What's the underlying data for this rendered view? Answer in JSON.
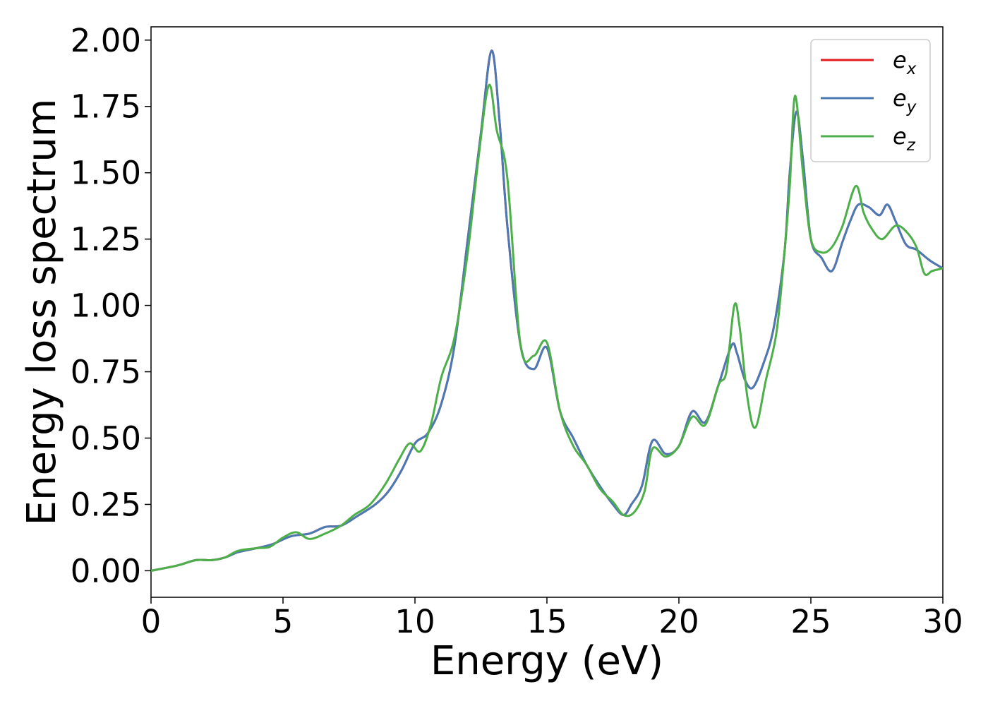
{
  "chart_data": {
    "type": "line",
    "xlabel": "Energy (eV)",
    "ylabel": "Energy loss spectrum",
    "xlim": [
      0,
      30
    ],
    "ylim": [
      -0.1,
      2.05
    ],
    "x_ticks": [
      0,
      5,
      10,
      15,
      20,
      25,
      30
    ],
    "x_tick_labels": [
      "0",
      "5",
      "10",
      "15",
      "20",
      "25",
      "30"
    ],
    "y_ticks": [
      0,
      0.25,
      0.5,
      0.75,
      1.0,
      1.25,
      1.5,
      1.75,
      2.0
    ],
    "y_tick_labels": [
      "0.00",
      "0.25",
      "0.50",
      "0.75",
      "1.00",
      "1.25",
      "1.50",
      "1.75",
      "2.00"
    ],
    "grid": false,
    "legend_position": "top-right",
    "series": [
      {
        "name": "e_x",
        "legend_base": "e",
        "legend_sub": "x",
        "color": "#e41a1c",
        "x": [
          0,
          1,
          1.7,
          2.3,
          2.8,
          3.3,
          4,
          4.6,
          5.3,
          6,
          6.6,
          7.2,
          7.8,
          8.5,
          9,
          9.5,
          10,
          10.5,
          11,
          11.5,
          12,
          12.5,
          12.9,
          13.2,
          13.5,
          14,
          14.5,
          15,
          15.5,
          16,
          16.5,
          17,
          17.5,
          17.9,
          18.2,
          18.6,
          19,
          19.5,
          20,
          20.5,
          21,
          21.5,
          22,
          22.2,
          22.5,
          22.8,
          23.2,
          23.6,
          24,
          24.2,
          24.45,
          24.7,
          25,
          25.4,
          25.8,
          26.2,
          26.5,
          26.8,
          27.2,
          27.6,
          27.9,
          28.2,
          28.6,
          29,
          29.5,
          30
        ],
        "y": [
          0,
          0.02,
          0.04,
          0.04,
          0.05,
          0.07,
          0.085,
          0.1,
          0.13,
          0.14,
          0.165,
          0.17,
          0.205,
          0.25,
          0.3,
          0.38,
          0.48,
          0.52,
          0.63,
          0.85,
          1.25,
          1.65,
          1.96,
          1.7,
          1.3,
          0.85,
          0.76,
          0.84,
          0.6,
          0.5,
          0.4,
          0.32,
          0.25,
          0.21,
          0.25,
          0.32,
          0.49,
          0.44,
          0.47,
          0.6,
          0.56,
          0.7,
          0.85,
          0.82,
          0.72,
          0.69,
          0.78,
          0.92,
          1.2,
          1.5,
          1.73,
          1.55,
          1.25,
          1.18,
          1.13,
          1.24,
          1.32,
          1.38,
          1.37,
          1.34,
          1.38,
          1.32,
          1.23,
          1.21,
          1.17,
          1.14
        ]
      },
      {
        "name": "e_y",
        "legend_base": "e",
        "legend_sub": "y",
        "color": "#4a7ab5",
        "x": [
          0,
          1,
          1.7,
          2.3,
          2.8,
          3.3,
          4,
          4.6,
          5.3,
          6,
          6.6,
          7.2,
          7.8,
          8.5,
          9,
          9.5,
          10,
          10.5,
          11,
          11.5,
          12,
          12.5,
          12.9,
          13.2,
          13.5,
          14,
          14.5,
          15,
          15.5,
          16,
          16.5,
          17,
          17.5,
          17.9,
          18.2,
          18.6,
          19,
          19.5,
          20,
          20.5,
          21,
          21.5,
          22,
          22.2,
          22.5,
          22.8,
          23.2,
          23.6,
          24,
          24.2,
          24.45,
          24.7,
          25,
          25.4,
          25.8,
          26.2,
          26.5,
          26.8,
          27.2,
          27.6,
          27.9,
          28.2,
          28.6,
          29,
          29.5,
          30
        ],
        "y": [
          0,
          0.02,
          0.04,
          0.04,
          0.05,
          0.07,
          0.085,
          0.1,
          0.13,
          0.14,
          0.165,
          0.17,
          0.205,
          0.25,
          0.3,
          0.38,
          0.48,
          0.52,
          0.63,
          0.85,
          1.25,
          1.65,
          1.96,
          1.7,
          1.3,
          0.85,
          0.76,
          0.84,
          0.6,
          0.5,
          0.4,
          0.32,
          0.25,
          0.21,
          0.25,
          0.32,
          0.49,
          0.44,
          0.47,
          0.6,
          0.56,
          0.7,
          0.85,
          0.82,
          0.72,
          0.69,
          0.78,
          0.92,
          1.2,
          1.5,
          1.73,
          1.55,
          1.25,
          1.18,
          1.13,
          1.24,
          1.32,
          1.38,
          1.37,
          1.34,
          1.38,
          1.32,
          1.23,
          1.21,
          1.17,
          1.14
        ]
      },
      {
        "name": "e_z",
        "legend_base": "e",
        "legend_sub": "z",
        "color": "#4daf4a",
        "x": [
          0,
          1,
          1.7,
          2.3,
          2.8,
          3.3,
          4,
          4.5,
          5,
          5.5,
          6,
          6.6,
          7.2,
          7.7,
          8.3,
          8.9,
          9.4,
          9.8,
          10.2,
          10.6,
          11,
          11.5,
          12,
          12.4,
          12.8,
          13.1,
          13.5,
          14,
          14.5,
          15,
          15.5,
          16,
          16.5,
          17,
          17.5,
          17.9,
          18.3,
          18.7,
          19,
          19.5,
          20,
          20.5,
          21,
          21.5,
          21.8,
          22.1,
          22.3,
          22.6,
          22.9,
          23.3,
          23.7,
          24,
          24.2,
          24.4,
          24.7,
          25,
          25.4,
          25.8,
          26.2,
          26.7,
          27,
          27.3,
          27.7,
          28.2,
          28.6,
          29,
          29.3,
          29.6,
          30
        ],
        "y": [
          0,
          0.02,
          0.04,
          0.04,
          0.05,
          0.075,
          0.085,
          0.09,
          0.125,
          0.145,
          0.12,
          0.14,
          0.17,
          0.21,
          0.25,
          0.33,
          0.42,
          0.48,
          0.45,
          0.55,
          0.73,
          0.88,
          1.2,
          1.55,
          1.83,
          1.66,
          1.48,
          0.85,
          0.81,
          0.86,
          0.6,
          0.47,
          0.4,
          0.31,
          0.26,
          0.21,
          0.22,
          0.3,
          0.46,
          0.43,
          0.47,
          0.58,
          0.55,
          0.7,
          0.75,
          1.0,
          0.92,
          0.65,
          0.54,
          0.72,
          0.9,
          1.2,
          1.45,
          1.79,
          1.5,
          1.25,
          1.2,
          1.22,
          1.3,
          1.45,
          1.35,
          1.29,
          1.25,
          1.3,
          1.28,
          1.22,
          1.12,
          1.13,
          1.14
        ]
      }
    ]
  }
}
